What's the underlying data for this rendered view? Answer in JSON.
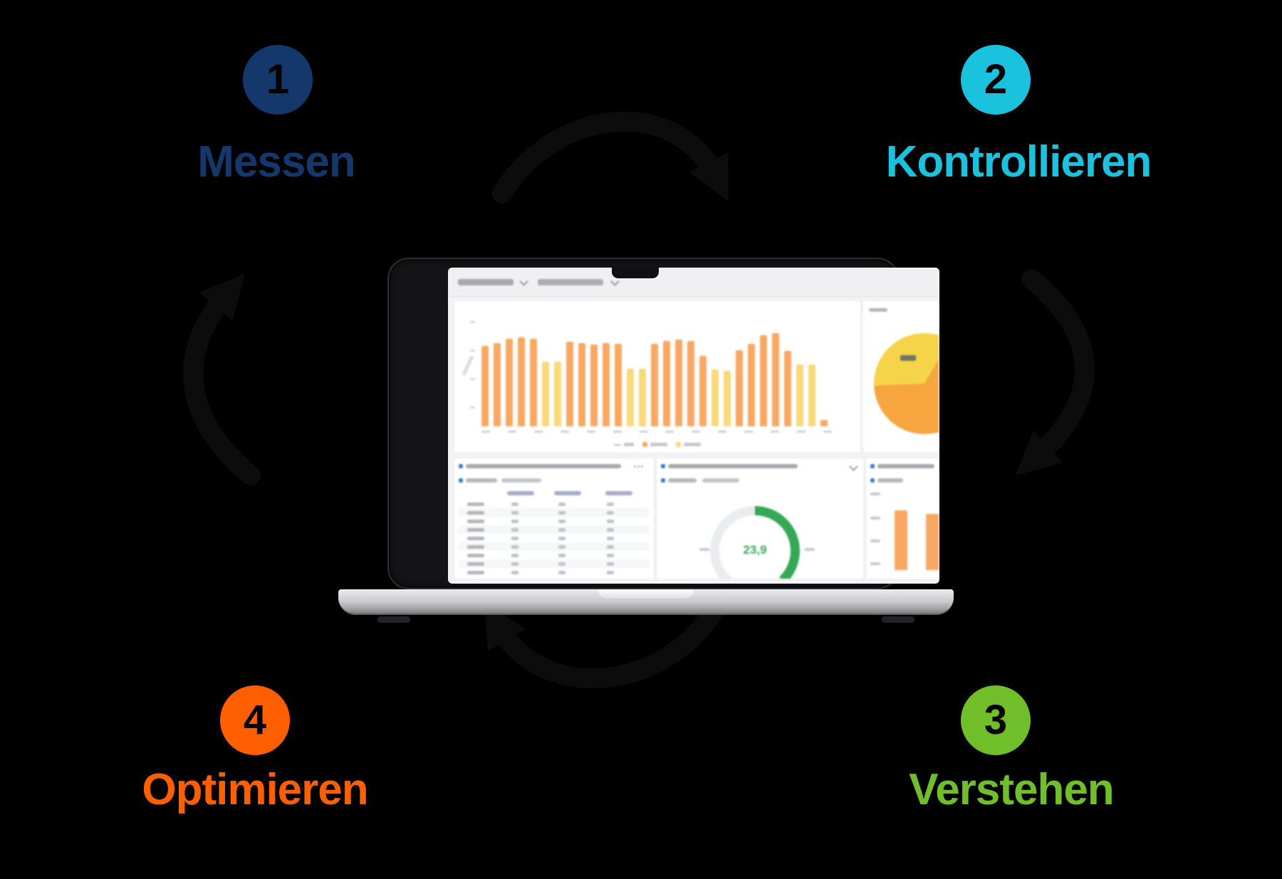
{
  "colors": {
    "navy": "#14386b",
    "cyan": "#1bc2de",
    "green": "#6fbe2a",
    "orange": "#ff5f00",
    "arrow": "#0c0c0c",
    "panel_icon_blue": "#3f7ad1",
    "chart_orange": "#f8a862",
    "chart_yellow": "#f9d97a",
    "gauge_track": "#e9edef"
  },
  "steps": [
    {
      "number": "1",
      "label": "Messen",
      "color": "#14386b"
    },
    {
      "number": "2",
      "label": "Kontrollieren",
      "color": "#1bc2de"
    },
    {
      "number": "3",
      "label": "Verstehen",
      "color": "#6fbe2a"
    },
    {
      "number": "4",
      "label": "Optimieren",
      "color": "#ff5f00"
    }
  ],
  "laptop_dashboard": {
    "main_chart": {
      "type": "bar",
      "bar_colors": {
        "orange": "#f8a862",
        "yellow": "#f9d97a"
      },
      "bars": [
        {
          "h": 0.78,
          "c": "orange"
        },
        {
          "h": 0.81,
          "c": "orange"
        },
        {
          "h": 0.85,
          "c": "orange"
        },
        {
          "h": 0.86,
          "c": "orange"
        },
        {
          "h": 0.85,
          "c": "orange"
        },
        {
          "h": 0.63,
          "c": "yellow"
        },
        {
          "h": 0.63,
          "c": "yellow"
        },
        {
          "h": 0.82,
          "c": "orange"
        },
        {
          "h": 0.81,
          "c": "orange"
        },
        {
          "h": 0.79,
          "c": "orange"
        },
        {
          "h": 0.81,
          "c": "orange"
        },
        {
          "h": 0.8,
          "c": "orange"
        },
        {
          "h": 0.56,
          "c": "yellow"
        },
        {
          "h": 0.56,
          "c": "yellow"
        },
        {
          "h": 0.8,
          "c": "orange"
        },
        {
          "h": 0.83,
          "c": "orange"
        },
        {
          "h": 0.84,
          "c": "orange"
        },
        {
          "h": 0.83,
          "c": "orange"
        },
        {
          "h": 0.68,
          "c": "orange"
        },
        {
          "h": 0.55,
          "c": "yellow"
        },
        {
          "h": 0.54,
          "c": "yellow"
        },
        {
          "h": 0.74,
          "c": "orange"
        },
        {
          "h": 0.8,
          "c": "orange"
        },
        {
          "h": 0.88,
          "c": "orange"
        },
        {
          "h": 0.9,
          "c": "orange"
        },
        {
          "h": 0.73,
          "c": "orange"
        },
        {
          "h": 0.6,
          "c": "yellow"
        },
        {
          "h": 0.6,
          "c": "yellow"
        },
        {
          "h": 0.06,
          "c": "orange"
        }
      ],
      "legend_swatches": [
        "#b9b9be",
        "#f8a862",
        "#f9d97a"
      ]
    },
    "pie": {
      "slices": [
        {
          "name": "orange",
          "percent": 66,
          "color": "#f7a53e"
        },
        {
          "name": "yellow",
          "percent": 34,
          "color": "#f5d44a"
        }
      ]
    },
    "gauge": {
      "value": "23,9",
      "percent": 38,
      "color": "#34a853"
    },
    "table": {
      "columns": 3,
      "rows": 9
    },
    "side_chart": {
      "bars": [
        {
          "h": 0.55,
          "c": "orange"
        },
        {
          "h": 0.52,
          "c": "orange"
        }
      ]
    }
  }
}
